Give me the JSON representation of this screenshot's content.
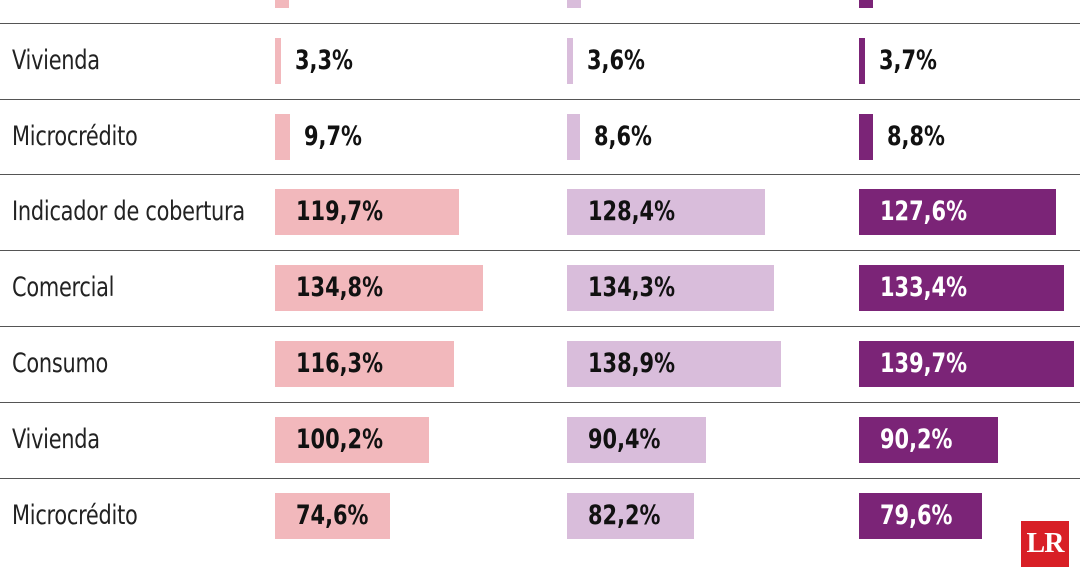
{
  "colors": {
    "col1": "#f2b8bc",
    "col2": "#d9bddb",
    "col3": "#7b2477",
    "text_dark": "#111111",
    "text_light": "#ffffff"
  },
  "chart_data": {
    "type": "bar",
    "rows": [
      {
        "label": "",
        "values": [
          "",
          "",
          ""
        ],
        "numeric": [
          null,
          null,
          null
        ],
        "partial": true
      },
      {
        "label": "Vivienda",
        "values": [
          "3,3%",
          "3,6%",
          "3,7%"
        ],
        "numeric": [
          3.3,
          3.6,
          3.7
        ]
      },
      {
        "label": "Microcrédito",
        "values": [
          "9,7%",
          "8,6%",
          "8,8%"
        ],
        "numeric": [
          9.7,
          8.6,
          8.8
        ]
      },
      {
        "label": "Indicador de cobertura",
        "values": [
          "119,7%",
          "128,4%",
          "127,6%"
        ],
        "numeric": [
          119.7,
          128.4,
          127.6
        ]
      },
      {
        "label": "Comercial",
        "values": [
          "134,8%",
          "134,3%",
          "133,4%"
        ],
        "numeric": [
          134.8,
          134.3,
          133.4
        ]
      },
      {
        "label": "Consumo",
        "values": [
          "116,3%",
          "138,9%",
          "139,7%"
        ],
        "numeric": [
          116.3,
          138.9,
          139.7
        ]
      },
      {
        "label": "Vivienda",
        "values": [
          "100,2%",
          "90,4%",
          "90,2%"
        ],
        "numeric": [
          100.2,
          90.4,
          90.2
        ]
      },
      {
        "label": "Microcrédito",
        "values": [
          "74,6%",
          "82,2%",
          "79,6%"
        ],
        "numeric": [
          74.6,
          82.2,
          79.6
        ]
      }
    ]
  },
  "logo": {
    "text": "LR"
  }
}
